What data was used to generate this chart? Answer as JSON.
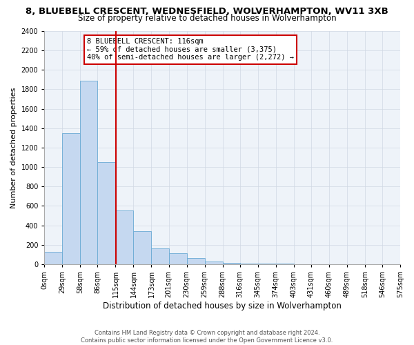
{
  "title": "8, BLUEBELL CRESCENT, WEDNESFIELD, WOLVERHAMPTON, WV11 3XB",
  "subtitle": "Size of property relative to detached houses in Wolverhampton",
  "xlabel": "Distribution of detached houses by size in Wolverhampton",
  "ylabel": "Number of detached properties",
  "bin_edges": [
    0,
    29,
    58,
    86,
    115,
    144,
    173,
    201,
    230,
    259,
    288,
    316,
    345,
    374,
    403,
    431,
    460,
    489,
    518,
    546,
    575
  ],
  "bin_labels": [
    "0sqm",
    "29sqm",
    "58sqm",
    "86sqm",
    "115sqm",
    "144sqm",
    "173sqm",
    "201sqm",
    "230sqm",
    "259sqm",
    "288sqm",
    "316sqm",
    "345sqm",
    "374sqm",
    "403sqm",
    "431sqm",
    "460sqm",
    "489sqm",
    "518sqm",
    "546sqm",
    "575sqm"
  ],
  "bar_heights": [
    125,
    1350,
    1890,
    1050,
    550,
    340,
    165,
    110,
    60,
    30,
    15,
    10,
    5,
    3,
    2,
    1,
    1,
    1,
    0,
    1
  ],
  "bar_color": "#c5d8f0",
  "bar_edge_color": "#6aaad4",
  "vline_x": 116,
  "vline_color": "#cc0000",
  "ylim": [
    0,
    2400
  ],
  "yticks": [
    0,
    200,
    400,
    600,
    800,
    1000,
    1200,
    1400,
    1600,
    1800,
    2000,
    2200,
    2400
  ],
  "annotation_title": "8 BLUEBELL CRESCENT: 116sqm",
  "annotation_line1": "← 59% of detached houses are smaller (3,375)",
  "annotation_line2": "40% of semi-detached houses are larger (2,272) →",
  "annotation_box_color": "#ffffff",
  "annotation_box_edge_color": "#cc0000",
  "footer_line1": "Contains HM Land Registry data © Crown copyright and database right 2024.",
  "footer_line2": "Contains public sector information licensed under the Open Government Licence v3.0.",
  "background_color": "#ffffff",
  "plot_background_color": "#eef3f9",
  "grid_color": "#d0d8e4",
  "title_fontsize": 9.5,
  "subtitle_fontsize": 8.5,
  "xlabel_fontsize": 8.5,
  "ylabel_fontsize": 8,
  "tick_fontsize": 7,
  "footer_fontsize": 6
}
